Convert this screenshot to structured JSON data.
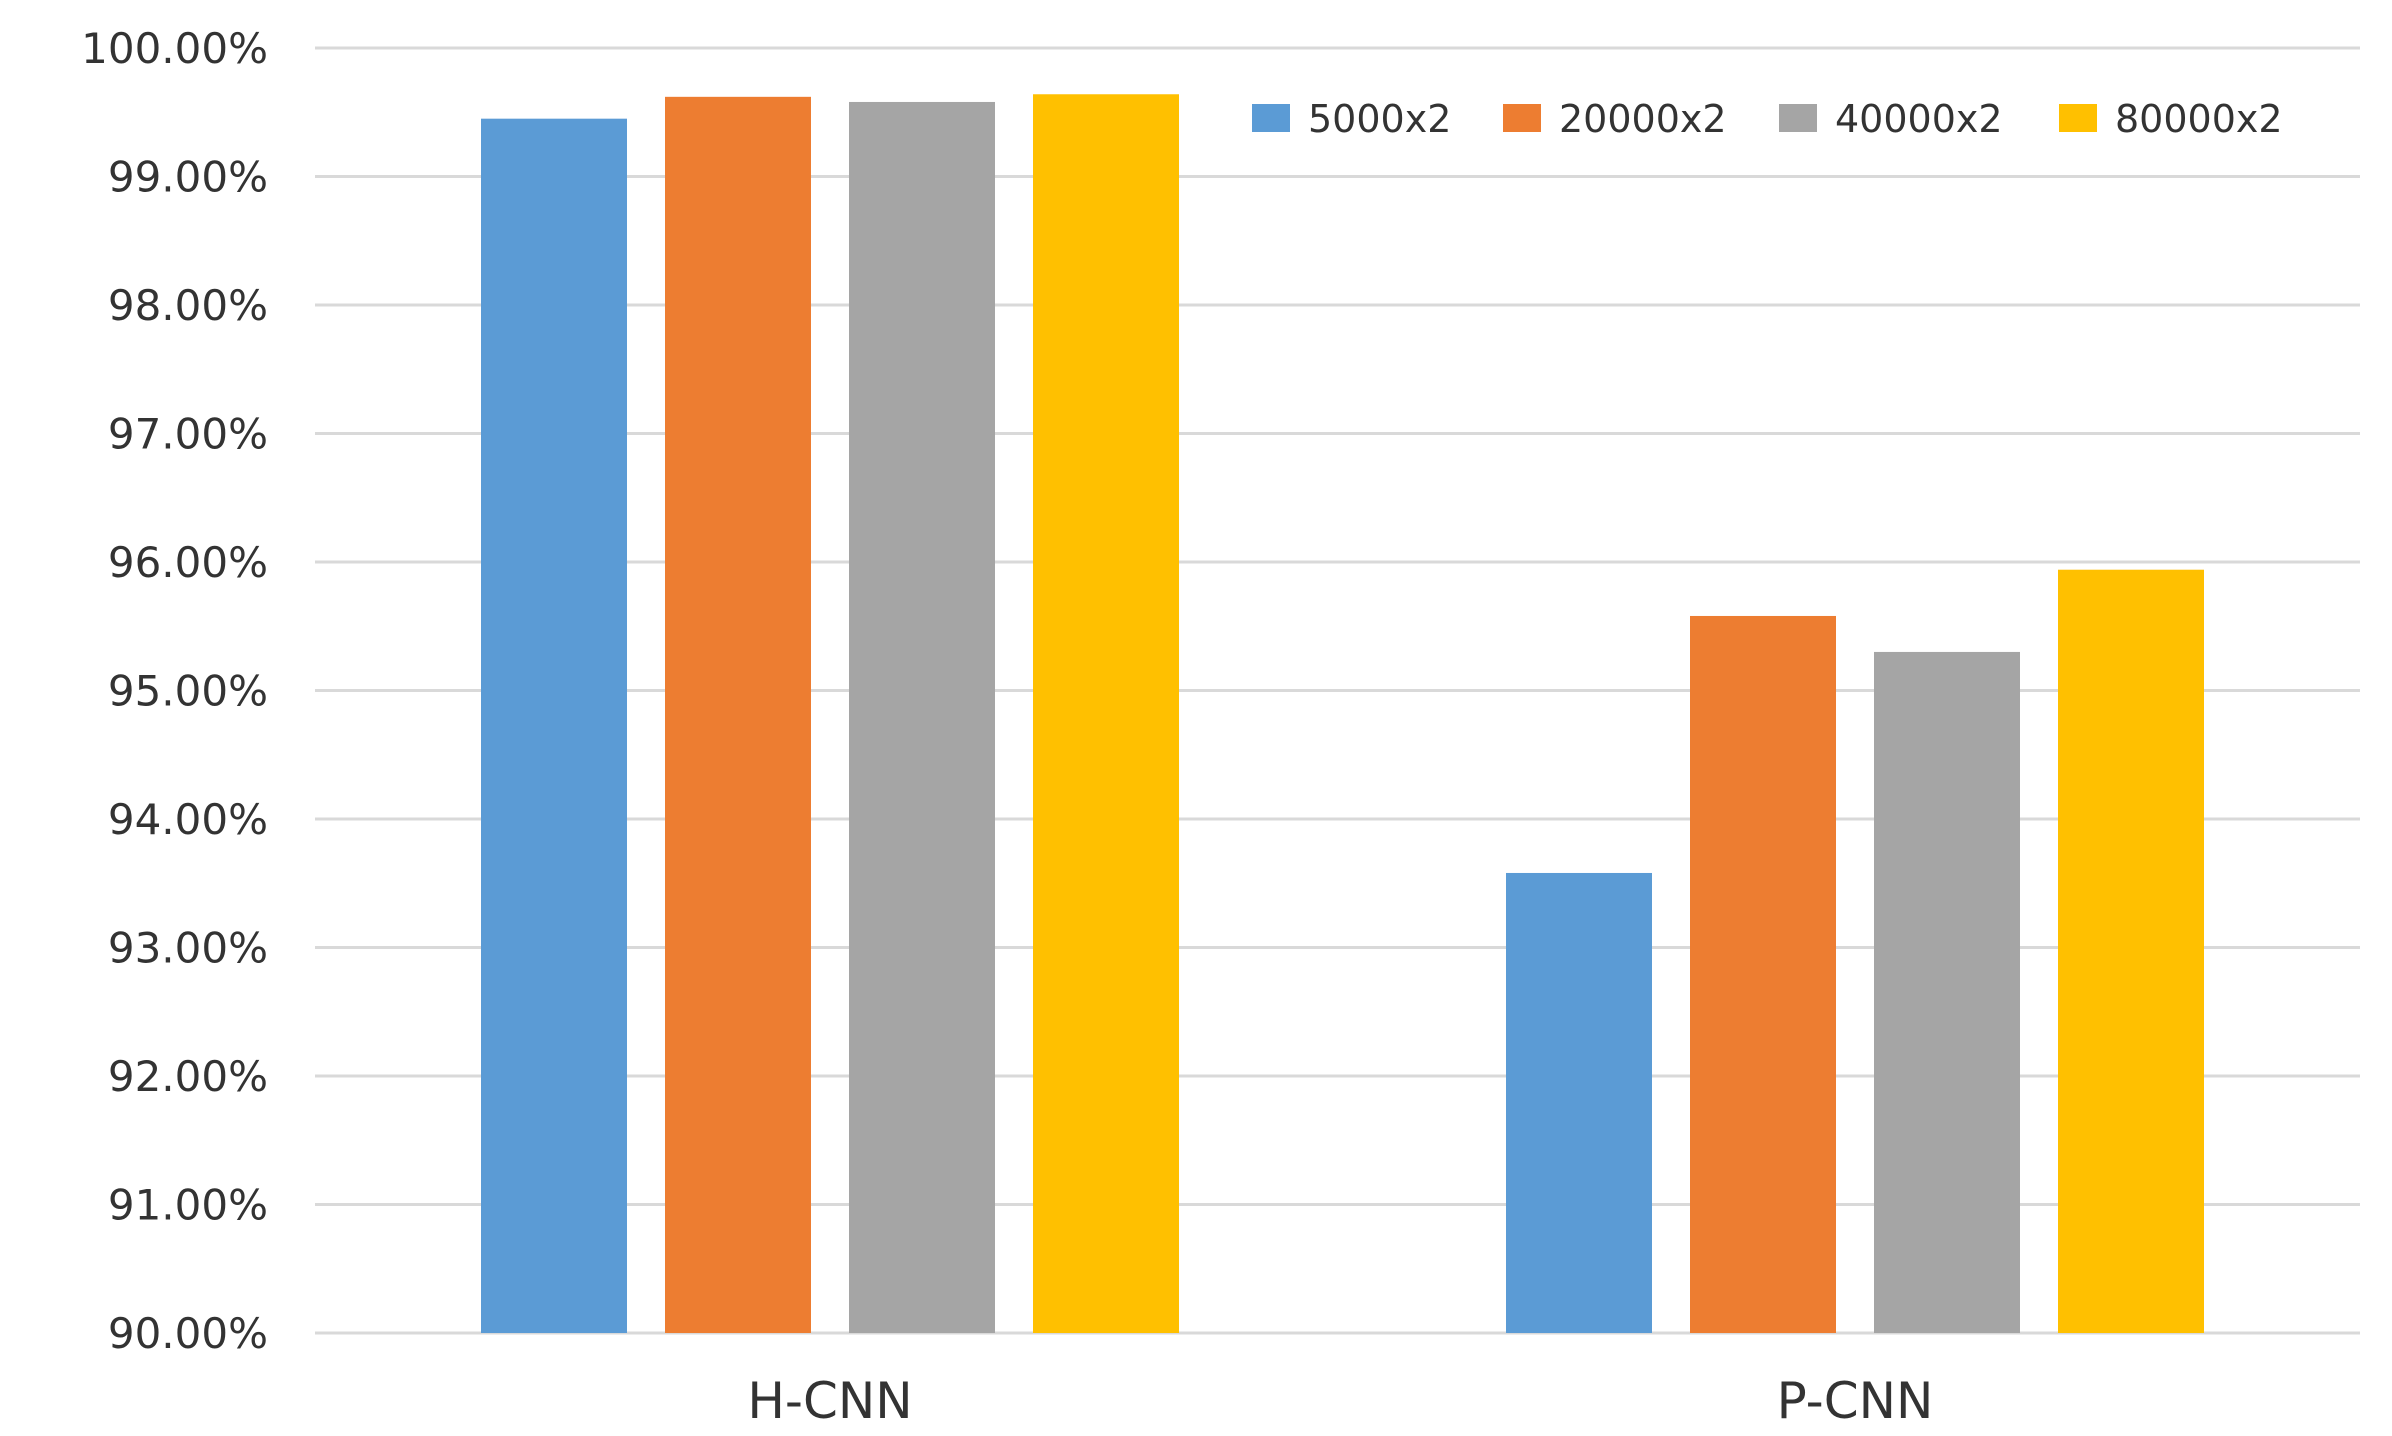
{
  "chart_data": {
    "type": "bar",
    "categories": [
      "H-CNN",
      "P-CNN"
    ],
    "series": [
      {
        "name": "5000x2",
        "values": [
          99.45,
          93.58
        ],
        "color": "#5b9bd5"
      },
      {
        "name": "20000x2",
        "values": [
          99.62,
          95.58
        ],
        "color": "#ed7d31"
      },
      {
        "name": "40000x2",
        "values": [
          99.58,
          95.3
        ],
        "color": "#a5a5a5"
      },
      {
        "name": "80000x2",
        "values": [
          99.64,
          95.94
        ],
        "color": "#ffc000"
      }
    ],
    "yticks": [
      "90.00%",
      "91.00%",
      "92.00%",
      "93.00%",
      "94.00%",
      "95.00%",
      "96.00%",
      "97.00%",
      "98.00%",
      "99.00%",
      "100.00%"
    ],
    "ylim": [
      90,
      100
    ],
    "grid": true,
    "legend_position": "top-right",
    "title": "",
    "xlabel": "",
    "ylabel": ""
  }
}
